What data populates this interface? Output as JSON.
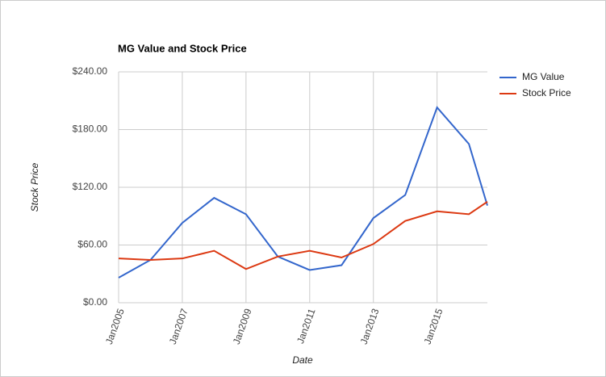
{
  "chart_data": {
    "type": "line",
    "title": "MG Value and Stock Price",
    "x_label": "Date",
    "y_label": "Stock Price",
    "x": [
      2005,
      2006,
      2007,
      2008,
      2009,
      2010,
      2011,
      2012,
      2013,
      2014,
      2015,
      2016,
      2016.58
    ],
    "series": [
      {
        "name": "MG Value",
        "color": "#3366cc",
        "values": [
          26,
          44.5,
          83,
          109,
          92,
          48,
          34,
          39,
          88,
          112,
          203,
          165,
          101
        ]
      },
      {
        "name": "Stock Price",
        "color": "#dc3912",
        "values": [
          46,
          44.5,
          46,
          54,
          35,
          48,
          54,
          47,
          61,
          85,
          95,
          92,
          105
        ]
      }
    ],
    "xlim": [
      2005,
      2016.58
    ],
    "xticks": [
      {
        "value": 2005,
        "label": "Jan2005"
      },
      {
        "value": 2007,
        "label": "Jan2007"
      },
      {
        "value": 2009,
        "label": "Jan2009"
      },
      {
        "value": 2011,
        "label": "Jan2011"
      },
      {
        "value": 2013,
        "label": "Jan2013"
      },
      {
        "value": 2015,
        "label": "Jan2015"
      }
    ],
    "ylim": [
      0,
      240
    ],
    "yticks": [
      {
        "value": 0,
        "label": "$0.00"
      },
      {
        "value": 60,
        "label": "$60.00"
      },
      {
        "value": 120,
        "label": "$120.00"
      },
      {
        "value": 180,
        "label": "$180.00"
      },
      {
        "value": 240,
        "label": "$240.00"
      }
    ],
    "grid": true,
    "legend": "right"
  }
}
